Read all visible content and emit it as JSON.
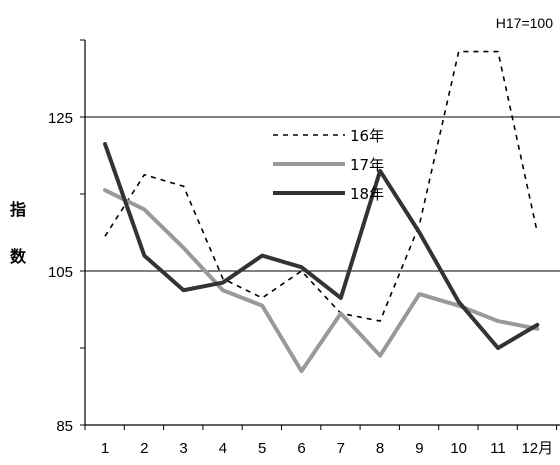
{
  "chart_data": {
    "type": "line",
    "note": "H17=100",
    "ylabel": "指数",
    "categories": [
      "1",
      "2",
      "3",
      "4",
      "5",
      "6",
      "7",
      "8",
      "9",
      "10",
      "11",
      "12月"
    ],
    "ylim": [
      85,
      135
    ],
    "yticks": [
      85,
      105,
      125
    ],
    "grid": true,
    "legend_position": "upper-center",
    "series": [
      {
        "name": "16年",
        "color": "#000000",
        "style": "dashed",
        "values": [
          109.5,
          117.5,
          116,
          104,
          101.5,
          105,
          99.5,
          98.5,
          111,
          133.5,
          133.5,
          110
        ]
      },
      {
        "name": "17年",
        "color": "#999999",
        "style": "solid",
        "values": [
          115.5,
          113,
          108,
          102.5,
          100.5,
          92,
          99.5,
          94,
          102,
          100.5,
          98.5,
          97.5
        ]
      },
      {
        "name": "18年",
        "color": "#333333",
        "style": "solid",
        "values": [
          121.5,
          107,
          102.5,
          103.5,
          107,
          105.5,
          101.5,
          118,
          110,
          101,
          95,
          98
        ]
      }
    ]
  }
}
